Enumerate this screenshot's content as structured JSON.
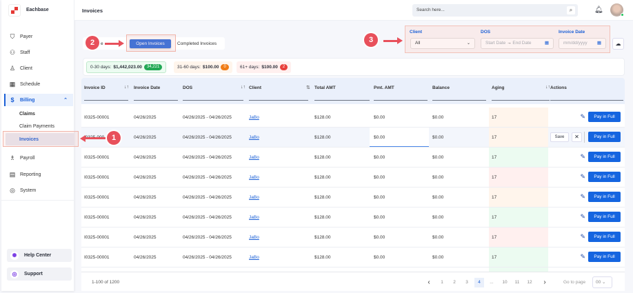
{
  "app": {
    "brand": "Eachbase",
    "page_title": "Invoices"
  },
  "header": {
    "search_placeholder": "Search here...",
    "search_icon": "search-icon",
    "bell_icon": "bell-icon"
  },
  "sidebar": {
    "items": [
      {
        "label": "Payer",
        "icon": "shield-icon"
      },
      {
        "label": "Staff",
        "icon": "staff-icon"
      },
      {
        "label": "Client",
        "icon": "user-icon"
      },
      {
        "label": "Schedule",
        "icon": "calendar-icon"
      },
      {
        "label": "Billing",
        "icon": "billing-icon",
        "active": true
      },
      {
        "label": "Payroll",
        "icon": "payroll-icon"
      },
      {
        "label": "Reporting",
        "icon": "clipboard-icon"
      },
      {
        "label": "System",
        "icon": "gear-icon"
      }
    ],
    "billing_sub": [
      "Claims",
      "Claim Payments",
      "Invoices"
    ],
    "help_center": "Help Center",
    "support": "Support"
  },
  "tabs": {
    "hidden_partial": "e",
    "open": "Open Invoices",
    "completed": "Completed Invoices"
  },
  "filters": {
    "client_label": "Client",
    "client_value": "All",
    "dos_label": "DOS",
    "start_placeholder": "Start Date",
    "end_placeholder": "End Date",
    "invoice_date_label": "Invoice Date",
    "invoice_date_placeholder": "mm/dd/yyyy"
  },
  "summary": [
    {
      "label": "0-30 days:",
      "amount": "$1,442,023.00",
      "count": "34,221",
      "color": "#22a855"
    },
    {
      "label": "31-60 days:",
      "amount": "$100.00",
      "count": "0",
      "color": "#f07b14"
    },
    {
      "label": "61+ days:",
      "amount": "$100.00",
      "count": "2",
      "color": "#e8403b"
    }
  ],
  "table": {
    "columns": [
      "Invoice ID",
      "Invoice Date",
      "DOS",
      "Client",
      "Total AMT",
      "Pmt. AMT",
      "Balance",
      "Aging",
      "Actions"
    ],
    "rows": [
      {
        "id": "I0325-00001",
        "date": "04/26/2025",
        "dos": "04/26/2025 - 04/26/2025",
        "client": "JaBo",
        "total": "$128.00",
        "pmt": "$0.00",
        "balance": "$0.00",
        "aging": "17",
        "aging_status": "orange"
      },
      {
        "id": "I0325-000",
        "date": "04/26/2025",
        "dos": "04/26/2025 - 04/26/2025",
        "client": "JaBo",
        "total": "$128.00",
        "pmt": "$0.00",
        "balance": "$0.00",
        "aging": "17",
        "aging_status": "orange",
        "editing": true
      },
      {
        "id": "I0325-00001",
        "date": "04/26/2025",
        "dos": "04/26/2025 - 04/26/2025",
        "client": "JaBo",
        "total": "$128.00",
        "pmt": "$0.00",
        "balance": "$0.00",
        "aging": "17",
        "aging_status": "green"
      },
      {
        "id": "I0325-00001",
        "date": "04/26/2025",
        "dos": "04/26/2025 - 04/26/2025",
        "client": "JaBo",
        "total": "$128.00",
        "pmt": "$0.00",
        "balance": "$0.00",
        "aging": "17",
        "aging_status": "red"
      },
      {
        "id": "I0325-00001",
        "date": "04/26/2025",
        "dos": "04/26/2025 - 04/26/2025",
        "client": "JaBo",
        "total": "$128.00",
        "pmt": "$0.00",
        "balance": "$0.00",
        "aging": "17",
        "aging_status": "orange"
      },
      {
        "id": "I0325-00001",
        "date": "04/26/2025",
        "dos": "04/26/2025 - 04/26/2025",
        "client": "JaBo",
        "total": "$128.00",
        "pmt": "$0.00",
        "balance": "$0.00",
        "aging": "17",
        "aging_status": "green"
      },
      {
        "id": "I0325-00001",
        "date": "04/26/2025",
        "dos": "04/26/2025 - 04/26/2025",
        "client": "JaBo",
        "total": "$128.00",
        "pmt": "$0.00",
        "balance": "$0.00",
        "aging": "17",
        "aging_status": "red"
      },
      {
        "id": "I0325-00001",
        "date": "04/26/2025",
        "dos": "04/26/2025 - 04/26/2025",
        "client": "JaBo",
        "total": "$128.00",
        "pmt": "$0.00",
        "balance": "$0.00",
        "aging": "17",
        "aging_status": "green"
      }
    ],
    "pay_label": "Pay in Full",
    "save_label": "Save"
  },
  "aging_colors": {
    "orange": "#fff5ec",
    "green": "#ecfbf1",
    "red": "#fff0ef"
  },
  "pagination": {
    "range": "1-100 of 1200",
    "pages": [
      "1",
      "2",
      "3",
      "4",
      "...",
      "10",
      "11",
      "12"
    ],
    "current": "4",
    "goto_label": "Go to page",
    "goto_value": "00"
  },
  "annotations": [
    "1",
    "2",
    "3"
  ],
  "colors": {
    "accent": "#1565e0",
    "annotation": "#e8505b"
  }
}
